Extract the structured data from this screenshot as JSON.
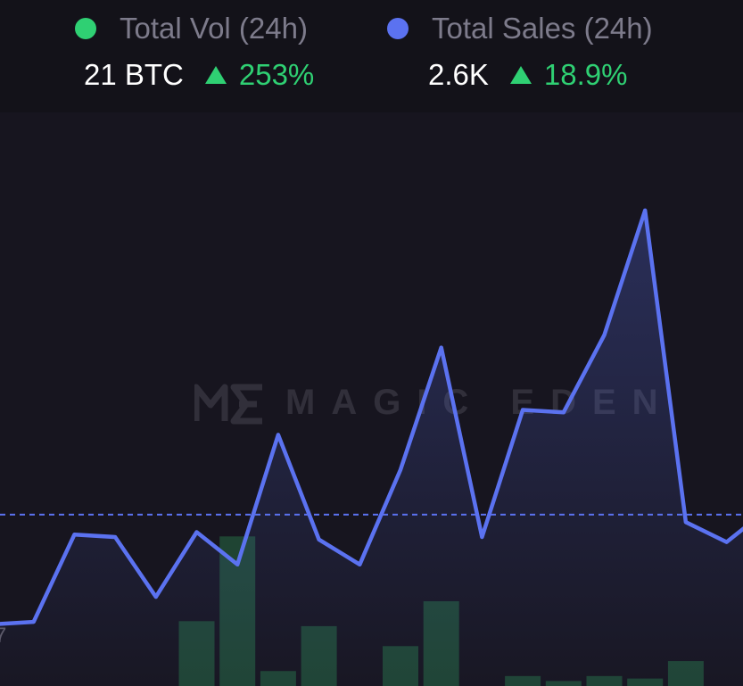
{
  "stats": {
    "vol": {
      "label": "Total Vol (24h)",
      "value": "21 BTC",
      "change": "253%",
      "dot_color": "#2fd073",
      "direction_icon": "triangle-up-icon"
    },
    "sales": {
      "label": "Total Sales (24h)",
      "value": "2.6K",
      "change": "18.9%",
      "dot_color": "#5b72f0",
      "direction_icon": "triangle-up-icon"
    }
  },
  "watermark": {
    "text": "MAGIC EDEN",
    "icon": "magic-eden-logo-icon"
  },
  "colors": {
    "sales_line": "#5b72f0",
    "volume_bar": "#1f4433",
    "reference_line": "#5b72f0"
  },
  "chart_data": {
    "type": "line",
    "title": "",
    "xlabel": "",
    "ylabel": "",
    "grid": false,
    "legend": "top",
    "ylim": [
      0,
      100
    ],
    "x": [
      0,
      1,
      2,
      3,
      4,
      5,
      6,
      7,
      8,
      9,
      10,
      11,
      12,
      13,
      14,
      15,
      16,
      17,
      18,
      19
    ],
    "series": [
      {
        "name": "Total Sales (24h)",
        "type": "line",
        "values": [
          7,
          7.5,
          25,
          24.5,
          12.5,
          25.5,
          19,
          45,
          24,
          19,
          38,
          62.5,
          24.5,
          50,
          49.5,
          65,
          90,
          27.5,
          23.5,
          30
        ]
      },
      {
        "name": "Total Vol (24h)",
        "type": "bar",
        "values": [
          0,
          0,
          0,
          0,
          0,
          13,
          30,
          3,
          12,
          0,
          8,
          17,
          0,
          2,
          1,
          2,
          1.5,
          5,
          0,
          0
        ]
      }
    ],
    "reference_line": 29,
    "partial_tick_label": "7"
  }
}
